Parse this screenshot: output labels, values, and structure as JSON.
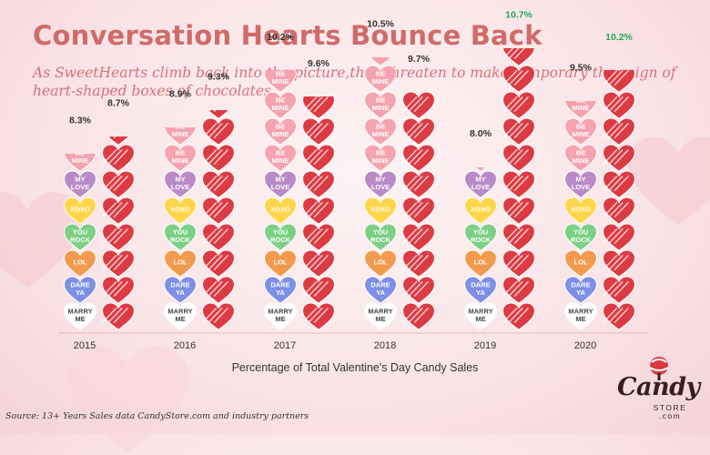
{
  "title": "Conversation Hearts Bounce Back",
  "subtitle": "As SweetHearts climb back into the picture,they threaten to make temporary the reign of heart-shaped boxes of chocolates.",
  "source": "Source: 13+ Years Sales data CandyStore.com and industry partners",
  "logo": {
    "name": "Candy",
    "sub1": "STORE",
    "sub2": ".com"
  },
  "colors": {
    "title": "#cf6b6a",
    "chocolate_heart": "#dc3b43",
    "label_up": "#27a85a",
    "label_down": "#333333"
  },
  "candy_messages": [
    {
      "text": "MARRY ME",
      "color": "#ffffff"
    },
    {
      "text": "DARE YA",
      "color": "#7d8fe6"
    },
    {
      "text": "LOL",
      "color": "#f29a4d"
    },
    {
      "text": "YOU ROCK",
      "color": "#7ccf84"
    },
    {
      "text": "XOXO",
      "color": "#ffd64a"
    },
    {
      "text": "MY LOVE",
      "color": "#b88ac7"
    },
    {
      "text": "BE MINE",
      "color": "#f5a3ae"
    }
  ],
  "chart_data": {
    "type": "bar",
    "title": "Conversation Hearts Bounce Back",
    "xlabel": "Percentage of Total Valentine's Day Candy Sales",
    "ylabel": "",
    "categories": [
      "2015",
      "2016",
      "2017",
      "2018",
      "2019",
      "2020"
    ],
    "series": [
      {
        "values": [
          8.3,
          8.9,
          10.2,
          10.5,
          8.0,
          9.5
        ],
        "labels": [
          "8.3%",
          "8.9%",
          "10.2%",
          "10.5%",
          "8.0%",
          "9.5%"
        ],
        "label_colors": [
          "#333333",
          "#333333",
          "#333333",
          "#333333",
          "#333333",
          "#333333"
        ]
      },
      {
        "values": [
          8.7,
          9.3,
          9.6,
          9.7,
          10.7,
          10.2
        ],
        "labels": [
          "8.7%",
          "9.3%",
          "9.6%",
          "9.7%",
          "10.7%",
          "10.2%"
        ],
        "label_colors": [
          "#333333",
          "#333333",
          "#333333",
          "#333333",
          "#27a85a",
          "#27a85a"
        ]
      }
    ],
    "axis_min": 0,
    "grid": false,
    "legend": "none"
  }
}
